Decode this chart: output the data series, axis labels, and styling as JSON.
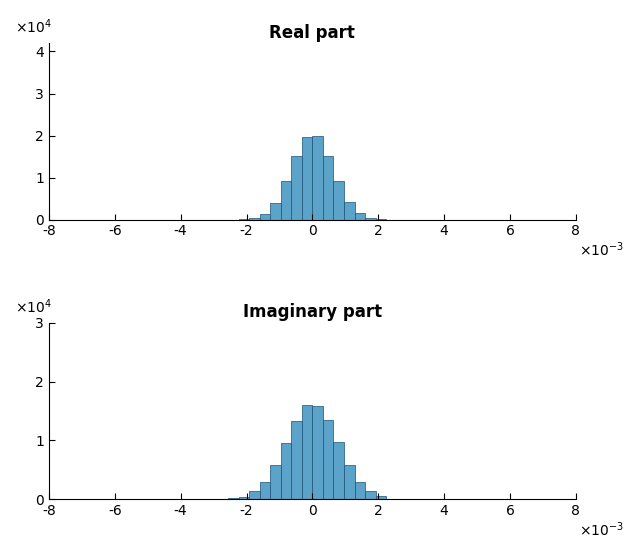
{
  "title_real": "Real part",
  "title_imag": "Imaginary part",
  "xlim": [
    -0.008,
    0.008
  ],
  "ylim_real": [
    0,
    42000
  ],
  "ylim_imag": [
    0,
    30000
  ],
  "xticks": [
    -8,
    -6,
    -4,
    -2,
    0,
    2,
    4,
    6,
    8
  ],
  "yticks_real": [
    0,
    10000,
    20000,
    30000,
    40000
  ],
  "yticks_imag": [
    0,
    10000,
    20000,
    30000
  ],
  "bar_color": "#5BA3C9",
  "bar_edge_color": "#1a5276",
  "n_bins": 50,
  "real_mean": 0.0,
  "real_std": 0.00062,
  "imag_mean": 0.0,
  "imag_std": 0.00078,
  "n_samples": 100000,
  "seed": 42,
  "title_fontsize": 12,
  "tick_fontsize": 10,
  "background_color": "#ffffff",
  "figsize": [
    6.4,
    5.58
  ],
  "dpi": 100
}
